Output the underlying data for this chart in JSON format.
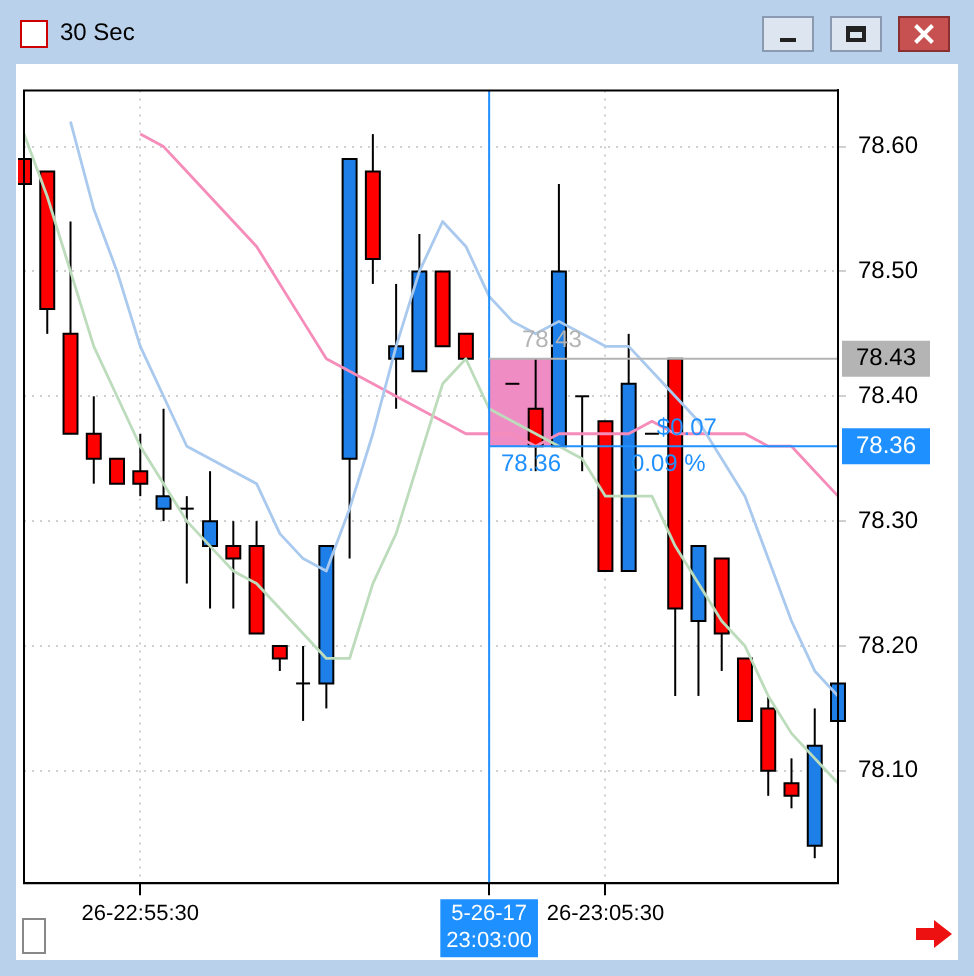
{
  "chart_data": {
    "type": "candlestick",
    "title": "30 Sec",
    "categories": [
      null,
      null,
      null,
      null,
      null,
      "26-22:55:30",
      null,
      null,
      null,
      null,
      null,
      null,
      null,
      null,
      null,
      null,
      null,
      null,
      null,
      null,
      "5-26-17 23:03:00",
      null,
      null,
      null,
      null,
      "26-23:05:30",
      null,
      null,
      null,
      null,
      null,
      null,
      null,
      null,
      null,
      null
    ],
    "ohlc": [
      [
        78.59,
        78.62,
        78.55,
        78.57
      ],
      [
        78.58,
        78.58,
        78.45,
        78.47
      ],
      [
        78.45,
        78.54,
        78.37,
        78.37
      ],
      [
        78.37,
        78.4,
        78.33,
        78.35
      ],
      [
        78.35,
        78.35,
        78.33,
        78.33
      ],
      [
        78.34,
        78.37,
        78.32,
        78.33
      ],
      [
        78.31,
        78.39,
        78.3,
        78.32
      ],
      [
        78.31,
        78.32,
        78.25,
        78.31
      ],
      [
        78.28,
        78.34,
        78.23,
        78.3
      ],
      [
        78.28,
        78.3,
        78.23,
        78.27
      ],
      [
        78.28,
        78.3,
        78.21,
        78.21
      ],
      [
        78.2,
        78.2,
        78.18,
        78.19
      ],
      [
        78.17,
        78.2,
        78.14,
        78.17
      ],
      [
        78.17,
        78.28,
        78.15,
        78.28
      ],
      [
        78.35,
        78.59,
        78.27,
        78.59
      ],
      [
        78.58,
        78.61,
        78.49,
        78.51
      ],
      [
        78.43,
        78.49,
        78.39,
        78.44
      ],
      [
        78.42,
        78.53,
        78.42,
        78.5
      ],
      [
        78.5,
        78.5,
        78.44,
        78.44
      ],
      [
        78.45,
        78.45,
        78.43,
        78.43
      ],
      null,
      [
        78.41,
        78.41,
        78.41,
        78.41
      ],
      [
        78.39,
        78.43,
        78.34,
        78.36
      ],
      [
        78.36,
        78.57,
        78.36,
        78.5
      ],
      [
        78.4,
        78.4,
        78.34,
        78.4
      ],
      [
        78.38,
        78.38,
        78.26,
        78.26
      ],
      [
        78.26,
        78.45,
        78.26,
        78.41
      ],
      [
        78.37,
        78.37,
        78.37,
        78.37
      ],
      [
        78.43,
        78.43,
        78.16,
        78.23
      ],
      [
        78.22,
        78.28,
        78.16,
        78.28
      ],
      [
        78.27,
        78.27,
        78.18,
        78.21
      ],
      [
        78.19,
        78.19,
        78.14,
        78.14
      ],
      [
        78.15,
        78.16,
        78.08,
        78.1
      ],
      [
        78.09,
        78.11,
        78.07,
        78.08
      ],
      [
        78.04,
        78.15,
        78.03,
        78.12
      ],
      [
        78.14,
        78.18,
        78.11,
        78.17
      ]
    ],
    "colors": [
      "#ff0000",
      "#ff0000",
      "#ff0000",
      "#ff0000",
      "#ff0000",
      "#ff0000",
      "#1e7fe8",
      "#000000",
      "#1e7fe8",
      "#ff0000",
      "#ff0000",
      "#ff0000",
      "#000000",
      "#1e7fe8",
      "#1e7fe8",
      "#ff0000",
      "#1e7fe8",
      "#1e7fe8",
      "#ff0000",
      "#ff0000",
      null,
      "#000000",
      "#ff0000",
      "#1e7fe8",
      "#000000",
      "#ff0000",
      "#1e7fe8",
      "#000000",
      "#ff0000",
      "#1e7fe8",
      "#ff0000",
      "#ff0000",
      "#ff0000",
      "#ff0000",
      "#1e7fe8",
      "#1e7fe8"
    ],
    "series": [
      {
        "type": "line",
        "color": "#a9c9ee",
        "values": [
          null,
          null,
          78.62,
          78.55,
          78.5,
          78.44,
          78.4,
          78.36,
          78.35,
          78.34,
          78.33,
          78.29,
          78.27,
          78.26,
          78.31,
          78.37,
          78.44,
          78.5,
          78.54,
          78.52,
          78.48,
          78.46,
          78.45,
          78.46,
          78.45,
          78.44,
          78.44,
          78.42,
          78.4,
          78.38,
          78.35,
          78.32,
          78.27,
          78.22,
          78.18,
          78.16
        ]
      },
      {
        "type": "line",
        "color": "#bcdcbc",
        "values": [
          78.61,
          78.56,
          78.5,
          78.44,
          78.4,
          78.36,
          78.33,
          78.3,
          78.28,
          78.26,
          78.25,
          78.23,
          78.21,
          78.19,
          78.19,
          78.25,
          78.29,
          78.35,
          78.41,
          78.43,
          78.39,
          78.38,
          78.37,
          78.36,
          78.35,
          78.32,
          78.32,
          78.32,
          78.28,
          78.25,
          78.22,
          78.2,
          78.16,
          78.13,
          78.11,
          78.09
        ]
      },
      {
        "type": "line",
        "color": "#f58cba",
        "values": [
          null,
          null,
          null,
          null,
          null,
          78.61,
          78.6,
          78.58,
          78.56,
          78.54,
          78.52,
          78.49,
          78.46,
          78.43,
          78.42,
          78.41,
          78.4,
          78.39,
          78.38,
          78.37,
          78.37,
          78.37,
          78.36,
          78.37,
          78.37,
          78.37,
          78.37,
          78.38,
          78.37,
          78.37,
          78.37,
          78.37,
          78.36,
          78.36,
          78.34,
          78.32
        ]
      }
    ],
    "ylim": [
      78.01,
      78.645
    ],
    "yticks": [
      {
        "value": 78.1,
        "label": "78.10"
      },
      {
        "value": 78.2,
        "label": "78.20"
      },
      {
        "value": 78.3,
        "label": "78.30"
      },
      {
        "value": 78.4,
        "label": "78.40"
      },
      {
        "value": 78.5,
        "label": "78.50"
      },
      {
        "value": 78.6,
        "label": "78.60"
      }
    ],
    "grid": true,
    "ref_lines": [
      {
        "axis": "x",
        "value": "5-26-17 23:03:00",
        "color": "#1e90ff"
      },
      {
        "axis": "y",
        "value": 78.43,
        "label": "78.43",
        "color": "#b4b4b4"
      },
      {
        "axis": "y",
        "value": 78.36,
        "label": "78.36",
        "color": "#1e90ff"
      }
    ],
    "bands": [
      {
        "axis": "y",
        "from": 78.36,
        "to": 78.43,
        "color": "#f08cc4"
      }
    ],
    "annotations": [
      {
        "text": "78.43",
        "y": 78.43
      },
      {
        "text": "78.36",
        "y": 78.36
      },
      {
        "text": "$0.07",
        "y": 78.36
      },
      {
        "text": "0.09 %",
        "y": 78.36
      }
    ]
  }
}
